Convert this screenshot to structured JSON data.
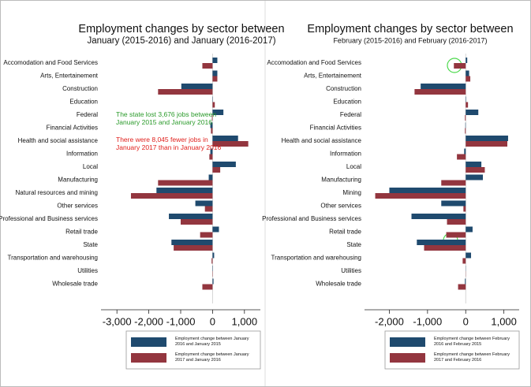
{
  "chart_data": [
    {
      "type": "barh",
      "title": "Employment changes by sector between",
      "subtitle": "January (2015-2016) and January (2016-2017)",
      "categories": [
        "Accomodation and Food Services",
        "Arts, Entertainement",
        "Construction",
        "Education",
        "Federal",
        "Financial Activities",
        "Health and social assistance",
        "Information",
        "Local",
        "Manufacturing",
        "Natural resources and mining",
        "Other services",
        "Professional and Business services",
        "Retail trade",
        "State",
        "Transportation and warehousing",
        "Utilities",
        "Wholesale trade"
      ],
      "series": [
        {
          "name": "Employment change between January 2016 and January 2015",
          "color": "#1f4a6e",
          "values": [
            150,
            150,
            -980,
            10,
            340,
            -70,
            800,
            -70,
            730,
            -120,
            -1760,
            -540,
            -1370,
            200,
            -1290,
            50,
            10,
            30
          ]
        },
        {
          "name": "Employment change between January 2017 and January 2016",
          "color": "#93363f",
          "values": [
            -320,
            150,
            -1710,
            70,
            -20,
            -50,
            1120,
            -100,
            240,
            -1710,
            -2560,
            -240,
            -1000,
            -390,
            -1220,
            -30,
            -10,
            -320
          ]
        }
      ],
      "xlim": [
        -3500,
        1500
      ],
      "xticks": [
        {
          "value": -3000,
          "label": "-3,000"
        },
        {
          "value": -2000,
          "label": "-2,000"
        },
        {
          "value": -1000,
          "label": "-1,000"
        },
        0,
        {
          "value": 1000,
          "label": "1,000"
        }
      ],
      "annotations": [
        {
          "text": "The state lost 3,676 jobs between January 2015 and January 2016",
          "color": "#2a9a2a"
        },
        {
          "text": "There were 8,045 fewer jobs in January 2017 than in January 2016",
          "color": "#e0201c"
        }
      ]
    },
    {
      "type": "barh",
      "title": "Employment changes by sector between",
      "subtitle": "February (2015-2016) and February (2016-2017)",
      "categories": [
        "Accomodation and Food Services",
        "Arts, Entertainement",
        "Construction",
        "Education",
        "Federal",
        "Financial Activities",
        "Health and social assistance",
        "Information",
        "Local",
        "Manufacturing",
        "Mining",
        "Other services",
        "Professional and Business services",
        "Retail trade",
        "State",
        "Transportation and warehousing",
        "Utilities",
        "Wholesale trade"
      ],
      "series": [
        {
          "name": "Employment change between February 2016 and February 2015",
          "color": "#1f4a6e",
          "values": [
            40,
            90,
            -1180,
            10,
            330,
            -10,
            1110,
            -40,
            410,
            450,
            -2000,
            -640,
            -1420,
            180,
            -1280,
            140,
            5,
            -20
          ]
        },
        {
          "name": "Employment change between February 2017 and February 2016",
          "color": "#93363f",
          "values": [
            -310,
            120,
            -1340,
            60,
            -20,
            -20,
            1090,
            -230,
            500,
            -640,
            -2370,
            -60,
            -490,
            -510,
            -1090,
            -80,
            -5,
            -200
          ]
        }
      ],
      "xlim": [
        -2650,
        1400
      ],
      "xticks": [
        {
          "value": -2000,
          "label": "-2,000"
        },
        {
          "value": -1000,
          "label": "-1,000"
        },
        0,
        {
          "value": 1000,
          "label": "1,000"
        }
      ]
    }
  ]
}
